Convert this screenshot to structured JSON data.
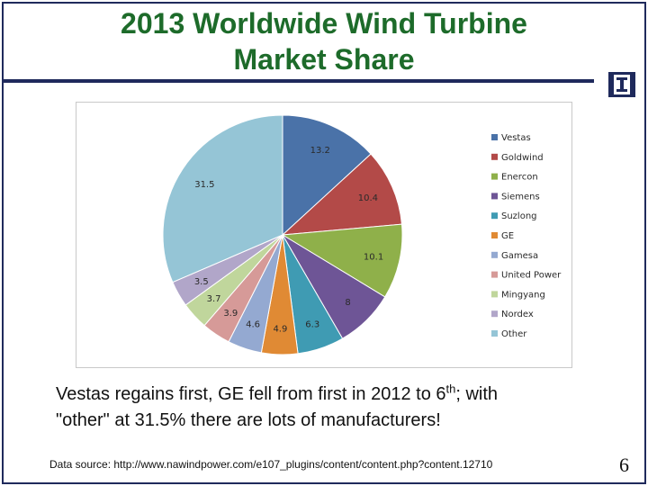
{
  "slide": {
    "title_line1": "2013 Worldwide Wind Turbine",
    "title_line2": "Market Share",
    "caption_part1": "Vestas regains first, GE fell from first in 2012 to 6",
    "caption_sup": "th",
    "caption_part2": "; with",
    "caption_line2": "\"other\" at 31.5% there are lots of manufacturers!",
    "source": "Data source: http://www.nawindpower.com/e107_plugins/content/content.php?content.12710",
    "page_number": "6",
    "logo_icon": "university-block-i-icon"
  },
  "chart_data": {
    "type": "pie",
    "title": "",
    "legend_position": "right",
    "slices": [
      {
        "label": "Vestas",
        "value": 13.2,
        "color": "#4a72a8"
      },
      {
        "label": "Goldwind",
        "value": 10.4,
        "color": "#b34a48"
      },
      {
        "label": "Enercon",
        "value": 10.1,
        "color": "#8fb04a"
      },
      {
        "label": "Siemens",
        "value": 8,
        "color": "#6e5596"
      },
      {
        "label": "Suzlong",
        "value": 6.3,
        "color": "#3f9bb3"
      },
      {
        "label": "GE",
        "value": 4.9,
        "color": "#e08a34"
      },
      {
        "label": "Gamesa",
        "value": 4.6,
        "color": "#94a9d1"
      },
      {
        "label": "United Power",
        "value": 3.9,
        "color": "#d69a98"
      },
      {
        "label": "Mingyang",
        "value": 3.7,
        "color": "#c0d69c"
      },
      {
        "label": "Nordex",
        "value": 3.5,
        "color": "#b1a6c9"
      },
      {
        "label": "Other",
        "value": 31.5,
        "color": "#95c5d6"
      }
    ]
  }
}
